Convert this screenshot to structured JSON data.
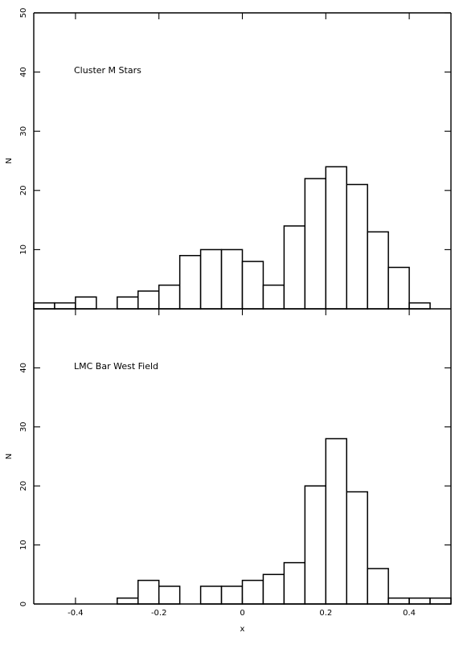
{
  "chart_data": [
    {
      "type": "bar",
      "title": "Cluster M Stars",
      "xlabel": "",
      "ylabel": "N",
      "xlim": [
        -0.5,
        0.5
      ],
      "ylim": [
        0,
        50
      ],
      "yticks": [
        10,
        20,
        30,
        40,
        50
      ],
      "xticks": [
        -0.4,
        -0.2,
        0,
        0.2,
        0.4
      ],
      "grid": false,
      "bin_width": 0.05,
      "bin_starts": [
        -0.5,
        -0.45,
        -0.4,
        -0.35,
        -0.3,
        -0.25,
        -0.2,
        -0.15,
        -0.1,
        -0.05,
        0.0,
        0.05,
        0.1,
        0.15,
        0.2,
        0.25,
        0.3,
        0.35,
        0.4
      ],
      "values": [
        1,
        1,
        2,
        0,
        2,
        3,
        4,
        9,
        10,
        10,
        8,
        4,
        14,
        22,
        24,
        21,
        13,
        7,
        1
      ]
    },
    {
      "type": "bar",
      "title": "LMC Bar West Field",
      "xlabel": "x",
      "ylabel": "N",
      "xlim": [
        -0.5,
        0.5
      ],
      "ylim": [
        0,
        50
      ],
      "yticks": [
        0,
        10,
        20,
        30,
        40
      ],
      "xticks": [
        -0.4,
        -0.2,
        0,
        0.2,
        0.4
      ],
      "xtick_labels": [
        "-0.4",
        "-0.2",
        "0",
        "0.2",
        "0.4"
      ],
      "grid": false,
      "bin_width": 0.05,
      "bin_starts": [
        -0.3,
        -0.25,
        -0.2,
        -0.15,
        -0.1,
        -0.05,
        0.0,
        0.05,
        0.1,
        0.15,
        0.2,
        0.25,
        0.3,
        0.35,
        0.4,
        0.45
      ],
      "values": [
        1,
        4,
        3,
        0,
        3,
        3,
        4,
        5,
        7,
        20,
        28,
        19,
        6,
        1,
        1,
        1
      ]
    }
  ]
}
